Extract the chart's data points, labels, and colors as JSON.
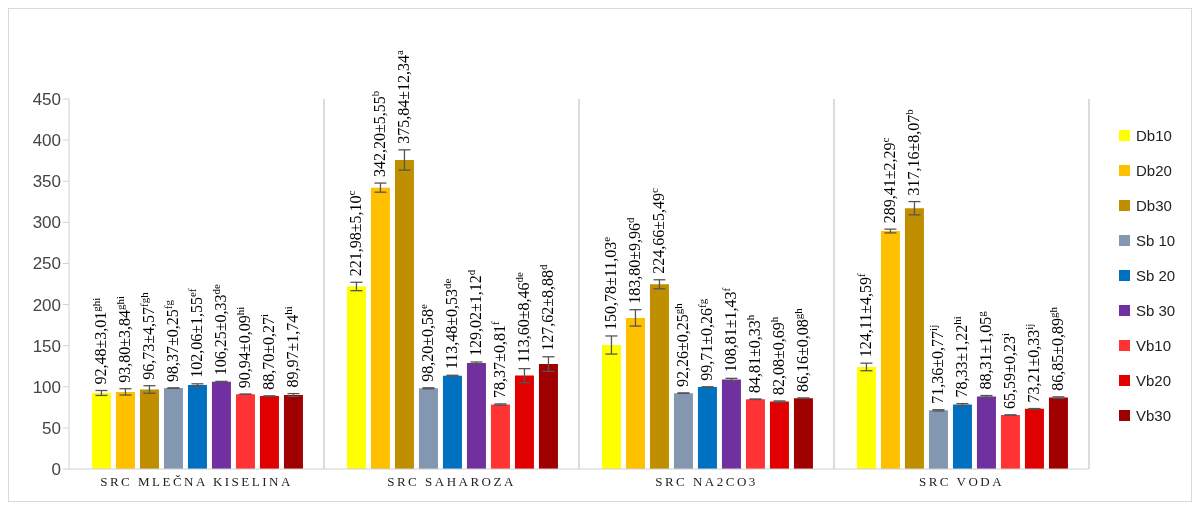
{
  "chart_data": {
    "type": "bar",
    "categories": [
      "SRC MLEČNA KISELINA",
      "SRC SAHAROZA",
      "SRC NA2CO3",
      "SRC VODA"
    ],
    "series": [
      {
        "name": "Db10",
        "color": "#ffff00",
        "values": [
          92.48,
          221.98,
          150.78,
          124.11
        ],
        "errors": [
          3.01,
          5.1,
          11.03,
          4.59
        ],
        "value_labels": [
          "92,48±3,01$^{ghi}$",
          "221,98±5,10$^{c}$",
          "150,78±11,03$^{e}$",
          "124,11±4,59$^{f}$"
        ]
      },
      {
        "name": "Db20",
        "color": "#ffc000",
        "values": [
          93.8,
          342.2,
          183.8,
          289.41
        ],
        "errors": [
          3.84,
          5.55,
          9.96,
          2.29
        ],
        "value_labels": [
          "93,80±3,84$^{ghi}$",
          "342,20±5,55$^{b}$",
          "183,80±9,96$^{d}$",
          "289,41±2,29$^{c}$"
        ]
      },
      {
        "name": "Db30",
        "color": "#bf8f00",
        "values": [
          96.73,
          375.84,
          224.66,
          317.16
        ],
        "errors": [
          4.57,
          12.34,
          5.49,
          8.07
        ],
        "value_labels": [
          "96,73±4,57$^{fgh}$",
          "375,84±12,34$^{a}$",
          "224,66±5,49$^{c}$",
          "317,16±8,07$^{b}$"
        ]
      },
      {
        "name": "Sb 10",
        "color": "#8497b0",
        "values": [
          98.37,
          98.2,
          92.26,
          71.36
        ],
        "errors": [
          0.25,
          0.58,
          0.25,
          0.77
        ],
        "value_labels": [
          "98,37±0,25$^{fg}$",
          "98,20±0,58$^{e}$",
          "92,26±0,25$^{gh}$",
          "71,36±0,77$^{ij}$"
        ]
      },
      {
        "name": "Sb 20",
        "color": "#0070c0",
        "values": [
          102.06,
          113.48,
          99.71,
          78.33
        ],
        "errors": [
          1.55,
          0.53,
          0.26,
          1.22
        ],
        "value_labels": [
          "102,06±1,55$^{ef}$",
          "113,48±0,53$^{de}$",
          "99,71±0,26$^{fg}$",
          "78,33±1,22$^{hi}$"
        ]
      },
      {
        "name": "Sb 30",
        "color": "#7030a0",
        "values": [
          106.25,
          129.02,
          108.81,
          88.31
        ],
        "errors": [
          0.33,
          1.12,
          1.43,
          1.05
        ],
        "value_labels": [
          "106,25±0,33$^{de}$",
          "129,02±1,12$^{d}$",
          "108,81±1,43$^{f}$",
          "88,31±1,05$^{g}$"
        ]
      },
      {
        "name": "Vb10",
        "color": "#ff3333",
        "values": [
          90.94,
          78.37,
          84.81,
          65.59
        ],
        "errors": [
          0.09,
          0.81,
          0.33,
          0.23
        ],
        "value_labels": [
          "90,94±0,09$^{hi}$",
          "78,37±0,81$^{f}$",
          "84,81±0,33$^{h}$",
          "65,59±0,23$^{i}$"
        ]
      },
      {
        "name": "Vb20",
        "color": "#e00000",
        "values": [
          88.7,
          113.6,
          82.08,
          73.21
        ],
        "errors": [
          0.27,
          8.46,
          0.69,
          0.33
        ],
        "value_labels": [
          "88,70±0,27$^{i}$",
          "113,60±8,46$^{de}$",
          "82,08±0,69$^{h}$",
          "73,21±0,33$^{ij}$"
        ]
      },
      {
        "name": "Vb30",
        "color": "#a00000",
        "values": [
          89.97,
          127.62,
          86.16,
          86.85
        ],
        "errors": [
          1.74,
          8.88,
          0.08,
          0.89
        ],
        "value_labels": [
          "89,97±1,74$^{hi}$",
          "127,62±8,88$^{d}$",
          "86,16±0,08$^{gh}$",
          "86,85±0,89$^{gh}$"
        ]
      }
    ],
    "ylim": [
      0,
      450
    ],
    "yticks": [
      0,
      50,
      100,
      150,
      200,
      250,
      300,
      350,
      400,
      450
    ],
    "legend": "right"
  }
}
